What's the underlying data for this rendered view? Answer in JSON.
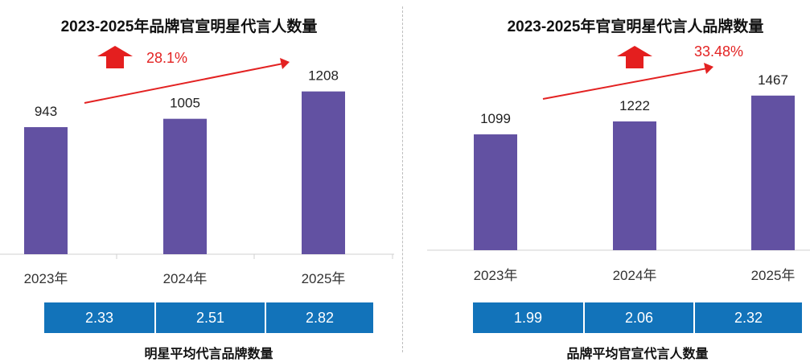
{
  "chart_data": [
    {
      "type": "bar",
      "title": "2023-2025年品牌官宣明星代言人数量",
      "categories": [
        "2023年",
        "2024年",
        "2025年"
      ],
      "values": [
        943,
        1005,
        1208
      ],
      "growth_label": "28.1%",
      "color": "#6251A2",
      "ylim": [
        0,
        1300
      ],
      "table_values": [
        "2.33",
        "2.51",
        "2.82"
      ],
      "table_caption": "明星平均代言品牌数量"
    },
    {
      "type": "bar",
      "title": "2023-2025年官宣明星代言人品牌数量",
      "categories": [
        "2023年",
        "2024年",
        "2025年"
      ],
      "values": [
        1099,
        1222,
        1467
      ],
      "growth_label": "33.48%",
      "color": "#6251A2",
      "ylim": [
        0,
        1500
      ],
      "table_values": [
        "1.99",
        "2.06",
        "2.32"
      ],
      "table_caption": "品牌平均官宣代言人数量"
    }
  ]
}
